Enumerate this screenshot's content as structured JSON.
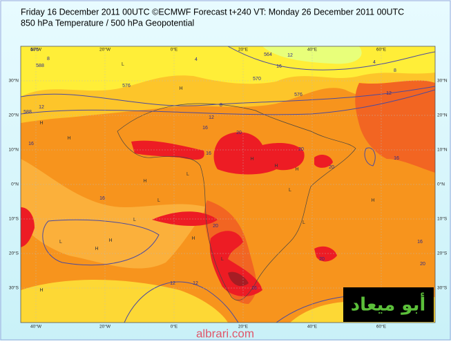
{
  "header": {
    "line1": "Friday 16 December 2011 00UTC ©ECMWF Forecast t+240 VT: Monday 26 December 2011 00UTC",
    "line2": "850 hPa Temperature / 500 hPa Geopotential"
  },
  "map": {
    "lon_labels": [
      "40°W",
      "20°W",
      "0°E",
      "20°E",
      "40°E",
      "60°E"
    ],
    "lat_labels": [
      "30°N",
      "20°N",
      "10°N",
      "0°N",
      "10°S",
      "20°S",
      "30°S"
    ],
    "contour_labels": [
      "576",
      "8",
      "588",
      "576",
      "4",
      "564",
      "570",
      "576",
      "8",
      "4",
      "12",
      "588",
      "12",
      "8",
      "12",
      "16",
      "16",
      "20",
      "16",
      "20",
      "20",
      "16",
      "20",
      "16",
      "12",
      "16",
      "20",
      "16",
      "20",
      "12",
      "16",
      "12"
    ],
    "pressure_marks": [
      "H",
      "H",
      "L",
      "H",
      "L",
      "H",
      "H",
      "L",
      "H",
      "L",
      "H",
      "L",
      "H",
      "H",
      "L",
      "H",
      "L",
      "H",
      "L",
      "H"
    ]
  },
  "logo": "أبو ميعاد",
  "watermark": "albrari.com"
}
